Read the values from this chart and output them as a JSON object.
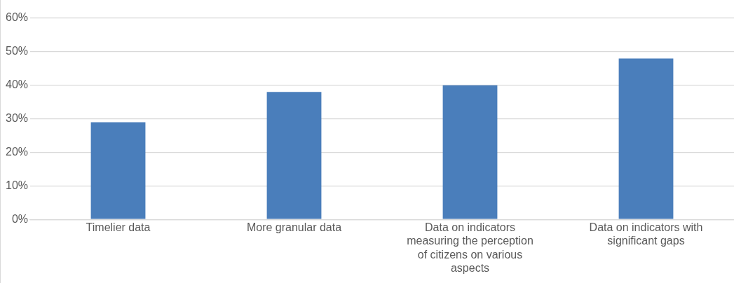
{
  "chart_data": {
    "type": "bar",
    "categories": [
      "Timelier data",
      "More granular data",
      "Data on indicators measuring the perception of citizens on various aspects",
      "Data on indicators with significant gaps"
    ],
    "values": [
      29,
      38,
      40,
      48
    ],
    "color": "#4a7ebb",
    "ylim": [
      0,
      60
    ],
    "yticks": [
      {
        "value": 0,
        "label": "0%"
      },
      {
        "value": 10,
        "label": "10%"
      },
      {
        "value": 20,
        "label": "20%"
      },
      {
        "value": 30,
        "label": "30%"
      },
      {
        "value": 40,
        "label": "40%"
      },
      {
        "value": 50,
        "label": "50%"
      },
      {
        "value": 60,
        "label": "60%"
      }
    ],
    "grid": "y",
    "legend": false
  }
}
